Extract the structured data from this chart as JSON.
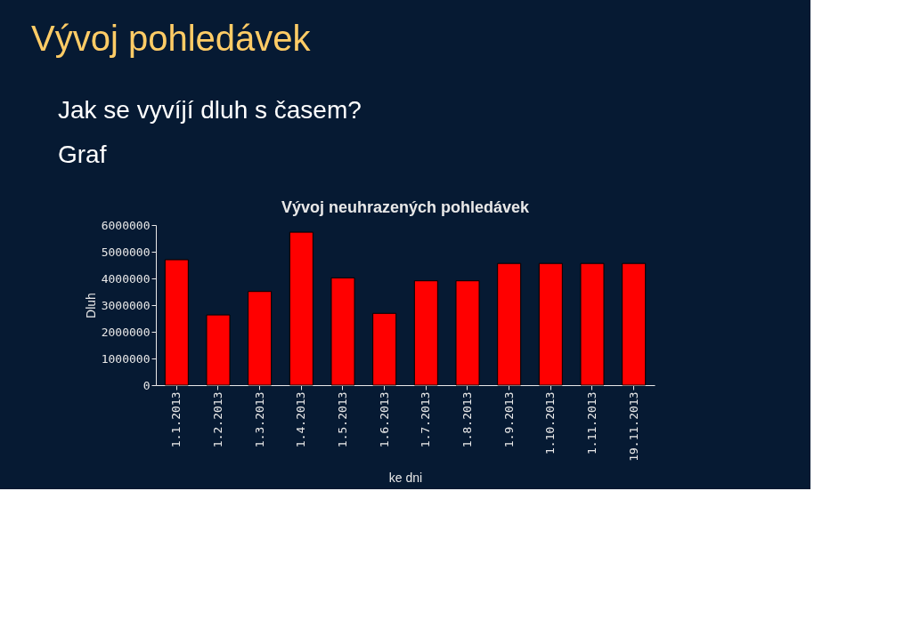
{
  "chart_data": {
    "type": "bar",
    "title": "Vývoj neuhrazených pohledávek",
    "xlabel": "ke dni",
    "ylabel": "Dluh",
    "annotations": [
      "Vývoj pohledávek",
      "Jak se vyvíjí dluh s časem?",
      "Graf"
    ],
    "categories": [
      "1.1.2013",
      "1.2.2013",
      "1.3.2013",
      "1.4.2013",
      "1.5.2013",
      "1.6.2013",
      "1.7.2013",
      "1.8.2013",
      "1.9.2013",
      "1.10.2013",
      "1.11.2013",
      "19.11.2013"
    ],
    "values": [
      4700000,
      2630000,
      3510000,
      5730000,
      4020000,
      2690000,
      3910000,
      3910000,
      4560000,
      4560000,
      4560000,
      4560000
    ],
    "color": "#ff0000",
    "ylim": [
      0,
      6000000
    ],
    "yticks": [
      0,
      1000000,
      2000000,
      3000000,
      4000000,
      5000000,
      6000000
    ],
    "grid": false
  }
}
